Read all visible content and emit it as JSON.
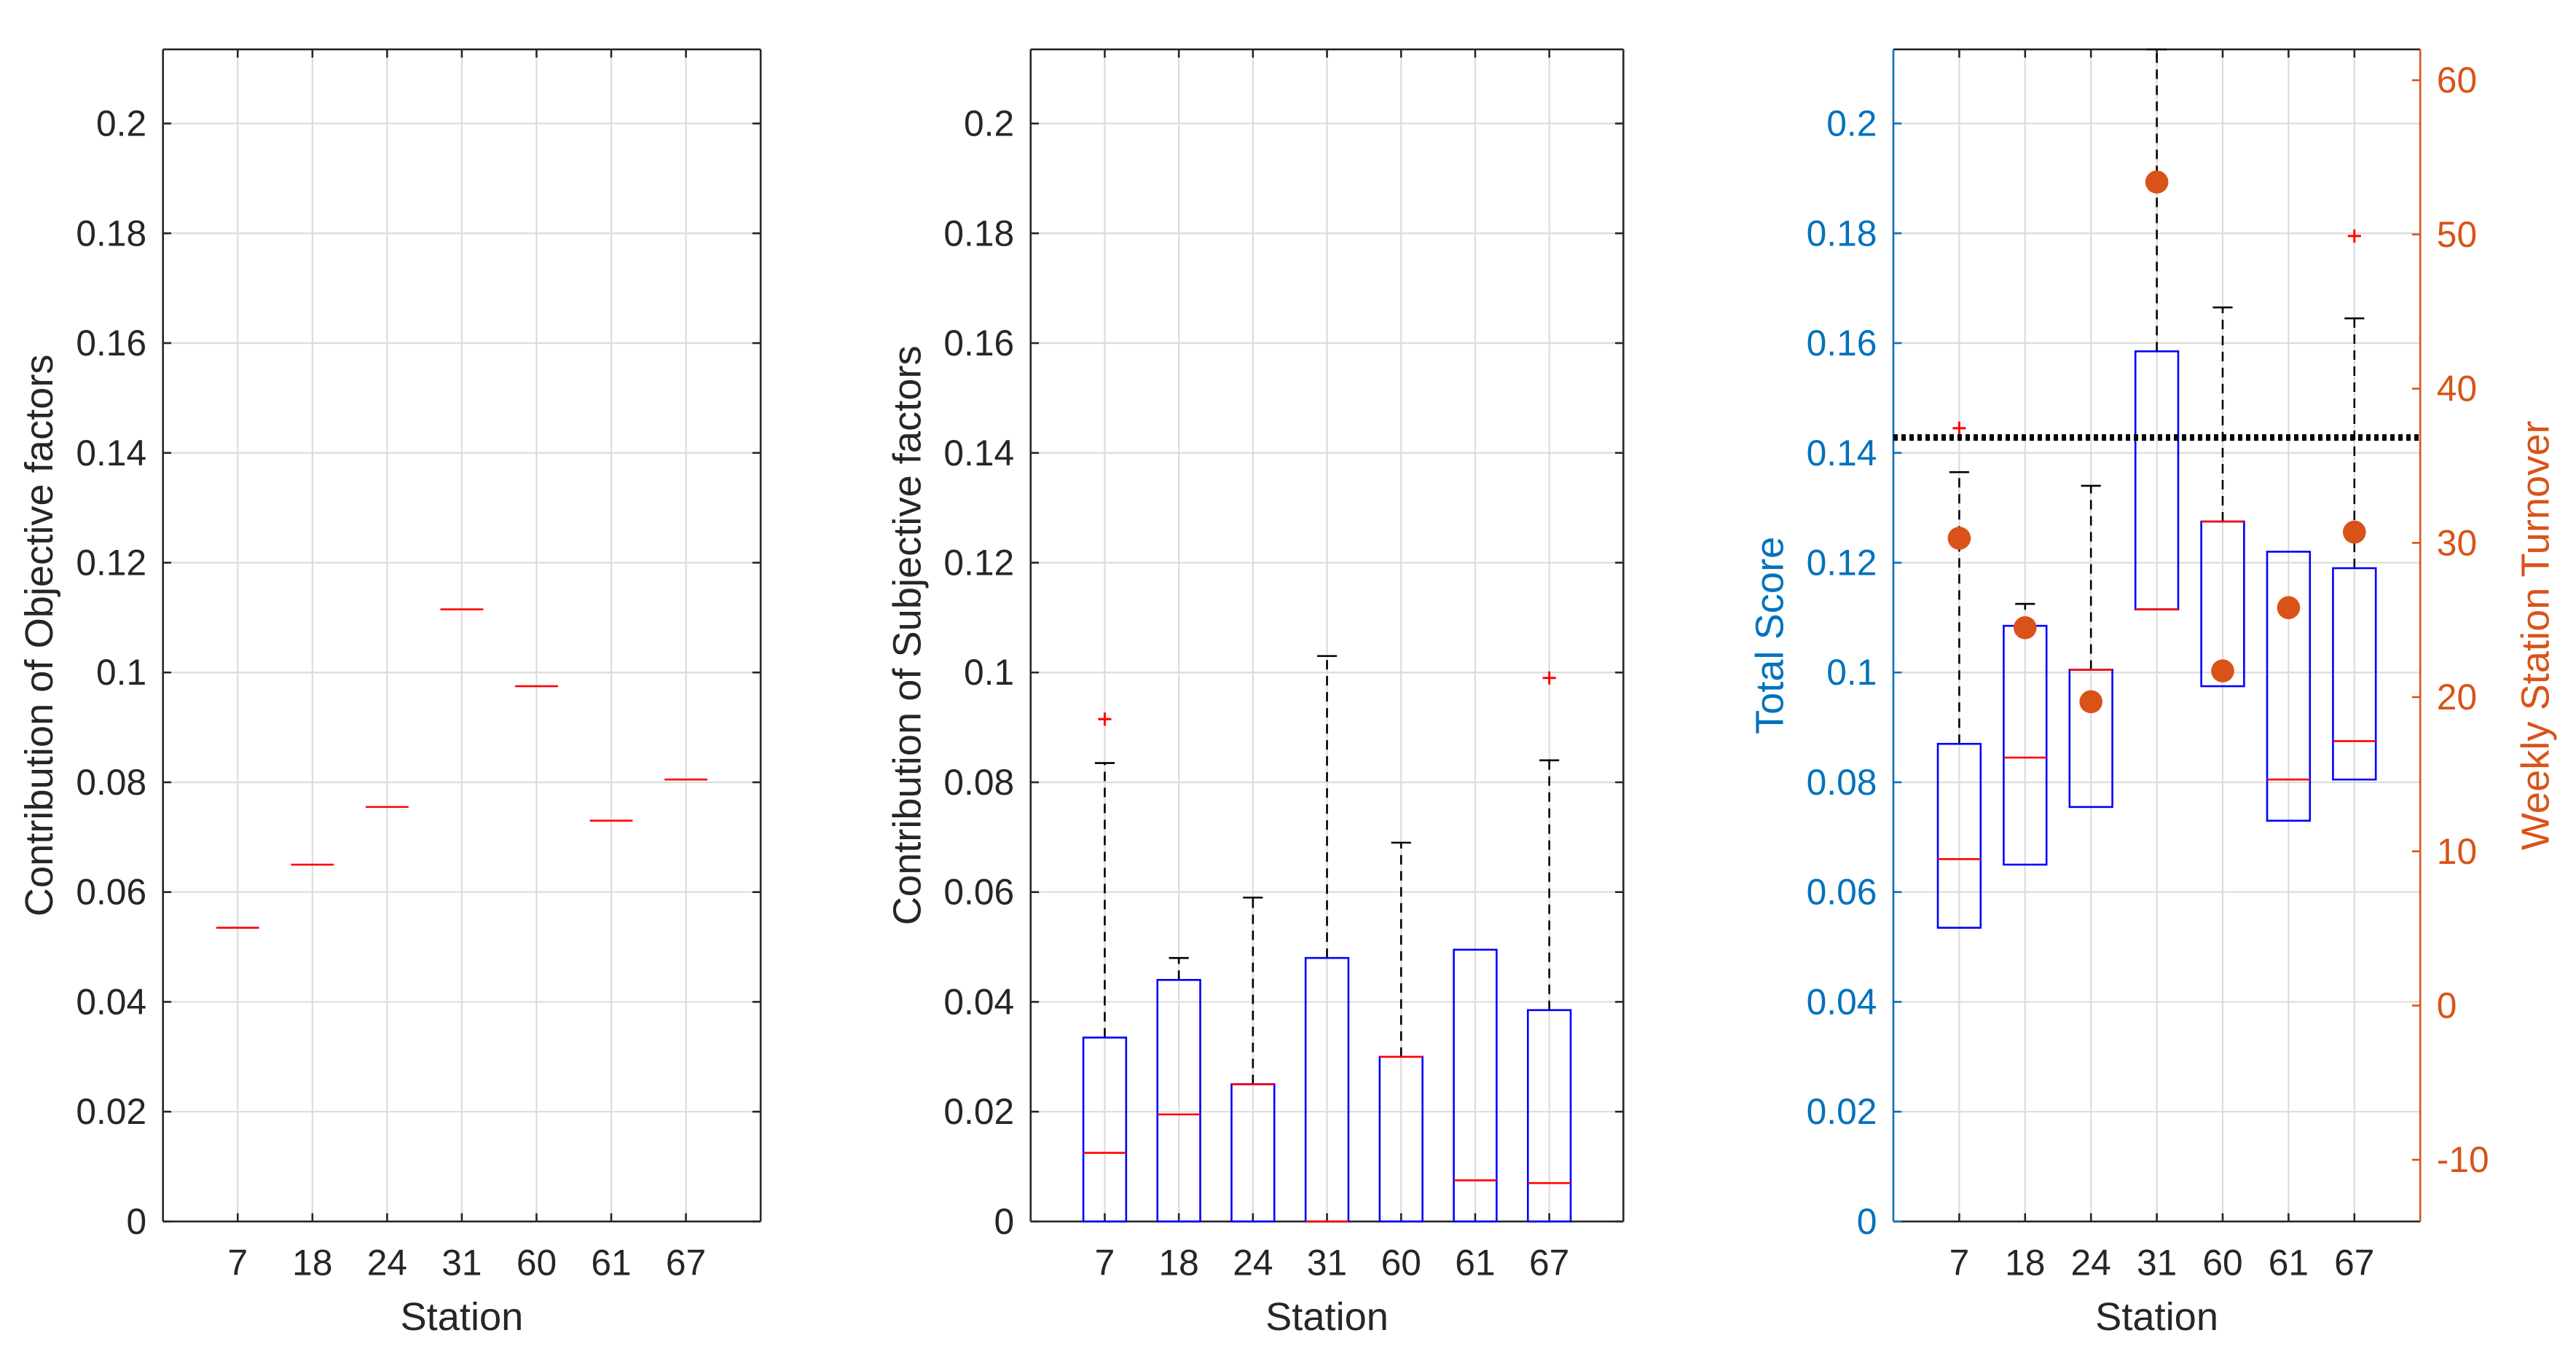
{
  "chart_data": [
    {
      "type": "box",
      "panel": "left",
      "xlabel": "Station",
      "ylabel": "Contribution of Objective factors",
      "categories": [
        "7",
        "18",
        "24",
        "31",
        "60",
        "61",
        "67"
      ],
      "ylim": [
        0,
        0.2135
      ],
      "yticks": [
        0,
        0.02,
        0.04,
        0.06,
        0.08,
        0.1,
        0.12,
        0.14,
        0.16,
        0.18,
        0.2
      ],
      "ytick_labels": [
        "0",
        "0.02",
        "0.04",
        "0.06",
        "0.08",
        "0.1",
        "0.12",
        "0.14",
        "0.16",
        "0.18",
        "0.2"
      ],
      "grid": true,
      "boxes": [
        {
          "q1": 0.0535,
          "median": 0.0535,
          "q3": 0.0535,
          "whisker_low": 0.0535,
          "whisker_high": 0.0535,
          "outliers": []
        },
        {
          "q1": 0.065,
          "median": 0.065,
          "q3": 0.065,
          "whisker_low": 0.065,
          "whisker_high": 0.065,
          "outliers": []
        },
        {
          "q1": 0.0755,
          "median": 0.0755,
          "q3": 0.0755,
          "whisker_low": 0.0755,
          "whisker_high": 0.0755,
          "outliers": []
        },
        {
          "q1": 0.1115,
          "median": 0.1115,
          "q3": 0.1115,
          "whisker_low": 0.1115,
          "whisker_high": 0.1115,
          "outliers": []
        },
        {
          "q1": 0.0975,
          "median": 0.0975,
          "q3": 0.0975,
          "whisker_low": 0.0975,
          "whisker_high": 0.0975,
          "outliers": []
        },
        {
          "q1": 0.073,
          "median": 0.073,
          "q3": 0.073,
          "whisker_low": 0.073,
          "whisker_high": 0.073,
          "outliers": []
        },
        {
          "q1": 0.0805,
          "median": 0.0805,
          "q3": 0.0805,
          "whisker_low": 0.0805,
          "whisker_high": 0.0805,
          "outliers": []
        }
      ]
    },
    {
      "type": "box",
      "panel": "middle",
      "xlabel": "Station",
      "ylabel": "Contribution of Subjective factors",
      "categories": [
        "7",
        "18",
        "24",
        "31",
        "60",
        "61",
        "67"
      ],
      "ylim": [
        0,
        0.2135
      ],
      "yticks": [
        0,
        0.02,
        0.04,
        0.06,
        0.08,
        0.1,
        0.12,
        0.14,
        0.16,
        0.18,
        0.2
      ],
      "ytick_labels": [
        "0",
        "0.02",
        "0.04",
        "0.06",
        "0.08",
        "0.1",
        "0.12",
        "0.14",
        "0.16",
        "0.18",
        "0.2"
      ],
      "grid": true,
      "boxes": [
        {
          "q1": 0,
          "median": 0.0125,
          "q3": 0.0335,
          "whisker_low": 0,
          "whisker_high": 0.0835,
          "outliers": [
            0.0915
          ]
        },
        {
          "q1": 0,
          "median": 0.0195,
          "q3": 0.044,
          "whisker_low": 0,
          "whisker_high": 0.048,
          "outliers": []
        },
        {
          "q1": 0,
          "median": 0.025,
          "q3": 0.025,
          "whisker_low": 0,
          "whisker_high": 0.059,
          "outliers": []
        },
        {
          "q1": 0,
          "median": 0,
          "q3": 0.048,
          "whisker_low": 0,
          "whisker_high": 0.103,
          "outliers": []
        },
        {
          "q1": 0,
          "median": 0.03,
          "q3": 0.03,
          "whisker_low": 0,
          "whisker_high": 0.069,
          "outliers": []
        },
        {
          "q1": 0,
          "median": 0.0075,
          "q3": 0.0495,
          "whisker_low": 0,
          "whisker_high": 0.0495,
          "outliers": []
        },
        {
          "q1": 0,
          "median": 0.007,
          "q3": 0.0385,
          "whisker_low": 0,
          "whisker_high": 0.084,
          "outliers": [
            0.099
          ]
        }
      ]
    },
    {
      "type": "box",
      "panel": "right",
      "xlabel": "Station",
      "ylabel": "Total Score",
      "ylabel_right": "Weekly Station Turnover",
      "categories": [
        "7",
        "18",
        "24",
        "31",
        "60",
        "61",
        "67"
      ],
      "ylim": [
        0,
        0.2135
      ],
      "yticks": [
        0,
        0.02,
        0.04,
        0.06,
        0.08,
        0.1,
        0.12,
        0.14,
        0.16,
        0.18,
        0.2
      ],
      "ytick_labels": [
        "0",
        "0.02",
        "0.04",
        "0.06",
        "0.08",
        "0.1",
        "0.12",
        "0.14",
        "0.16",
        "0.18",
        "0.2"
      ],
      "ylim_right": [
        -14,
        62
      ],
      "yticks_right": [
        -10,
        0,
        10,
        20,
        30,
        40,
        50,
        60
      ],
      "ytick_labels_right": [
        "-10",
        "0",
        "10",
        "20",
        "30",
        "40",
        "50",
        "60"
      ],
      "left_axis_color": "#0072BD",
      "right_axis_color": "#D95319",
      "grid": true,
      "threshold_line": 0.1428,
      "boxes": [
        {
          "q1": 0.0535,
          "median": 0.066,
          "q3": 0.087,
          "whisker_low": 0.0535,
          "whisker_high": 0.1365,
          "outliers": [
            0.1445
          ]
        },
        {
          "q1": 0.065,
          "median": 0.0845,
          "q3": 0.1085,
          "whisker_low": 0.065,
          "whisker_high": 0.1125,
          "outliers": []
        },
        {
          "q1": 0.0755,
          "median": 0.1005,
          "q3": 0.1005,
          "whisker_low": 0.0755,
          "whisker_high": 0.134,
          "outliers": []
        },
        {
          "q1": 0.1115,
          "median": 0.1115,
          "q3": 0.1585,
          "whisker_low": 0.1115,
          "whisker_high": 0.2135,
          "outliers": []
        },
        {
          "q1": 0.0975,
          "median": 0.1275,
          "q3": 0.1275,
          "whisker_low": 0.0975,
          "whisker_high": 0.1665,
          "outliers": []
        },
        {
          "q1": 0.073,
          "median": 0.0805,
          "q3": 0.122,
          "whisker_low": 0.073,
          "whisker_high": 0.122,
          "outliers": []
        },
        {
          "q1": 0.0805,
          "median": 0.0875,
          "q3": 0.119,
          "whisker_low": 0.0805,
          "whisker_high": 0.1645,
          "outliers": [
            0.1795
          ]
        }
      ],
      "turnover": [
        30.3,
        24.5,
        19.7,
        53.4,
        21.7,
        25.8,
        30.7
      ]
    }
  ]
}
